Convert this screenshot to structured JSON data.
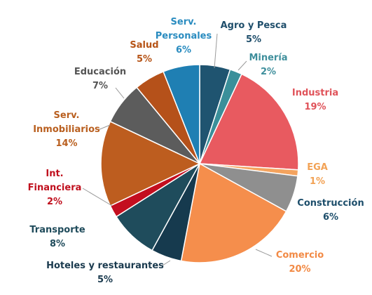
{
  "chart_data": {
    "type": "pie",
    "title": "",
    "slices": [
      {
        "name": "Agro y Pesca",
        "value": 5,
        "percent_label": "5%",
        "color": "#1f5470",
        "label_color": "#1f4e6b"
      },
      {
        "name": "Minería",
        "value": 2,
        "percent_label": "2%",
        "color": "#3a8f9a",
        "label_color": "#3f8f9c"
      },
      {
        "name": "Industria",
        "value": 19,
        "percent_label": "19%",
        "color": "#e85a60",
        "label_color": "#e0535a"
      },
      {
        "name": "EGA",
        "value": 1,
        "percent_label": "1%",
        "color": "#f4a35e",
        "label_color": "#f2a255"
      },
      {
        "name": "Construcción",
        "value": 6,
        "percent_label": "6%",
        "color": "#8f8f8f",
        "label_color": "#1d4e6b"
      },
      {
        "name": "Comercio",
        "value": 20,
        "percent_label": "20%",
        "color": "#f58e4c",
        "label_color": "#f28a45"
      },
      {
        "name": "Hoteles y restaurantes",
        "value": 5,
        "percent_label": "5%",
        "color": "#163a4e",
        "label_color": "#1a3a4e"
      },
      {
        "name": "Transporte",
        "value": 8,
        "percent_label": "8%",
        "color": "#1f4c5c",
        "label_color": "#1f4b5b"
      },
      {
        "name": "Int. Financiera",
        "value": 2,
        "percent_label": "2%",
        "color": "#c40e1f",
        "label_color": "#c0101e"
      },
      {
        "name": "Serv. Inmobiliarios",
        "value": 14,
        "percent_label": "14%",
        "color": "#bd5d1f",
        "label_color": "#b95f1f"
      },
      {
        "name": "Educación",
        "value": 7,
        "percent_label": "7%",
        "color": "#5c5c5c",
        "label_color": "#555555"
      },
      {
        "name": "Salud",
        "value": 5,
        "percent_label": "5%",
        "color": "#b5511a",
        "label_color": "#b65417"
      },
      {
        "name": "Serv. Personales",
        "value": 6,
        "percent_label": "6%",
        "color": "#1f7fb3",
        "label_color": "#2a8cc0"
      }
    ]
  }
}
